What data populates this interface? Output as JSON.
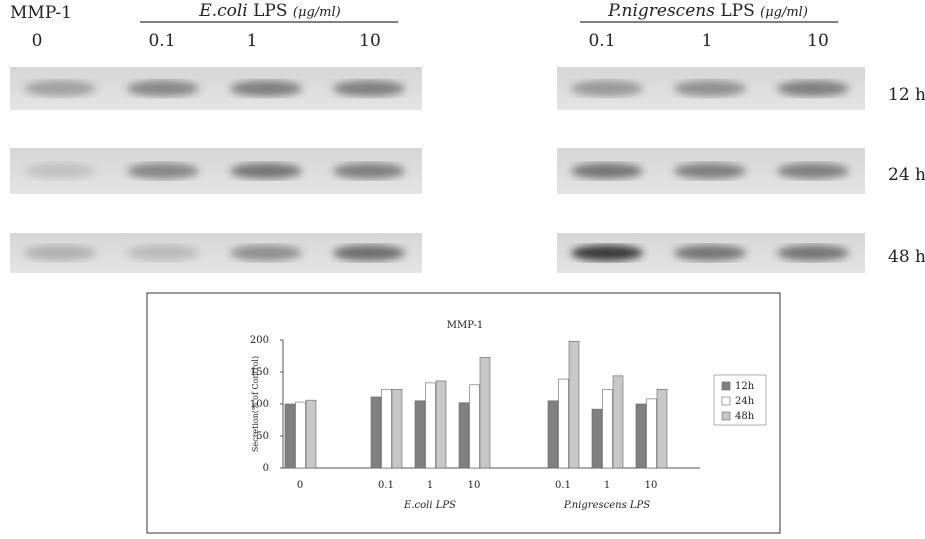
{
  "figure_label": "MMP-1",
  "blot_headers": [
    {
      "organism": "E.coli",
      "lps": "LPS",
      "unit": "(μg/ml)"
    },
    {
      "organism": "P.nigrescens",
      "lps": "LPS",
      "unit": "(μg/ml)"
    }
  ],
  "blot_concentrations": {
    "left": [
      "0",
      "0.1",
      "1",
      "10"
    ],
    "right": [
      "0.1",
      "1",
      "10"
    ]
  },
  "time_labels": [
    "12 h",
    "24 h",
    "48 h"
  ],
  "chart_data": {
    "type": "bar",
    "title": "MMP-1",
    "y_label": "Secretion(% of Control)",
    "categories": [
      "0",
      "0.1",
      "1",
      "10",
      "0.1",
      "1",
      "10"
    ],
    "group_labels": [
      "E.coli LPS",
      "P.nigrescens LPS"
    ],
    "ylim": [
      0,
      200
    ],
    "yticks": [
      0,
      50,
      100,
      150,
      200
    ],
    "series": [
      {
        "name": "12h",
        "color": "#808080",
        "values": [
          100,
          111,
          105,
          102,
          105,
          92,
          100
        ]
      },
      {
        "name": "24h",
        "color": "#ffffff",
        "values": [
          103,
          123,
          133,
          130,
          139,
          123,
          108
        ]
      },
      {
        "name": "48h",
        "color": "#c8c8c8",
        "values": [
          106,
          123,
          136,
          173,
          198,
          144,
          123
        ]
      }
    ]
  }
}
